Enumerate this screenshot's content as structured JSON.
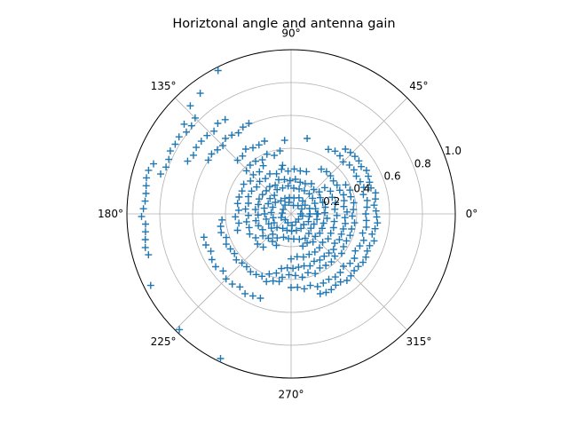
{
  "chart_data": {
    "type": "scatter",
    "projection": "polar",
    "title": "Horiztonal angle and antenna gain",
    "marker": "+",
    "series_color": "#1f77b4",
    "grid": true,
    "theta_unit": "degrees",
    "theta_ticks": [
      "0°",
      "45°",
      "90°",
      "135°",
      "180°",
      "225°",
      "270°",
      "315°"
    ],
    "r_ticks": [
      0.2,
      0.4,
      0.6,
      0.8,
      1.0
    ],
    "r_tick_labels": [
      "0.2",
      "0.4",
      "0.6",
      "0.8",
      "1.0"
    ],
    "r_label_angle_deg": 22.5,
    "rlim": [
      0,
      1.0
    ],
    "series": [
      {
        "description_source": "estimated",
        "arcs": [
          {
            "r": 0.06,
            "theta_start": 0,
            "theta_end": 360,
            "step": 25
          },
          {
            "r": 0.11,
            "theta_start": 0,
            "theta_end": 360,
            "step": 16
          },
          {
            "r": 0.16,
            "theta_start": 0,
            "theta_end": 360,
            "step": 12
          },
          {
            "r": 0.21,
            "theta_start": -70,
            "theta_end": 250,
            "step": 9
          },
          {
            "r": 0.27,
            "theta_start": -90,
            "theta_end": 40,
            "step": 8
          },
          {
            "r": 0.27,
            "theta_start": 70,
            "theta_end": 230,
            "step": 8
          },
          {
            "r": 0.33,
            "theta_start": -100,
            "theta_end": 60,
            "step": 6
          },
          {
            "r": 0.33,
            "theta_start": 120,
            "theta_end": 200,
            "step": 7
          },
          {
            "r": 0.38,
            "theta_start": -110,
            "theta_end": 30,
            "step": 6
          },
          {
            "r": 0.38,
            "theta_start": 100,
            "theta_end": 140,
            "step": 6
          },
          {
            "r": 0.43,
            "theta_start": 185,
            "theta_end": 260,
            "step": 5
          },
          {
            "r": 0.46,
            "theta_start": -90,
            "theta_end": 60,
            "step": 5
          },
          {
            "r": 0.47,
            "theta_start": 110,
            "theta_end": 135,
            "step": 5
          },
          {
            "r": 0.52,
            "theta_start": -70,
            "theta_end": 50,
            "step": 4
          },
          {
            "r": 0.55,
            "theta_start": 195,
            "theta_end": 250,
            "step": 5
          },
          {
            "r": 0.6,
            "theta_start": 115,
            "theta_end": 150,
            "step": 4
          },
          {
            "r": 0.7,
            "theta_start": 125,
            "theta_end": 155,
            "step": 4
          },
          {
            "r": 0.82,
            "theta_start": 135,
            "theta_end": 165,
            "step": 3.5
          },
          {
            "r": 0.9,
            "theta_start": 160,
            "theta_end": 198,
            "step": 3
          }
        ],
        "points": [
          {
            "theta": 117,
            "r": 0.98
          },
          {
            "theta": 127,
            "r": 0.92
          },
          {
            "theta": 133,
            "r": 0.9
          },
          {
            "theta": 140,
            "r": 0.85
          },
          {
            "theta": 207,
            "r": 0.96
          },
          {
            "theta": 226,
            "r": 0.98
          },
          {
            "theta": 244,
            "r": 0.98
          },
          {
            "theta": 95,
            "r": 0.45
          },
          {
            "theta": 78,
            "r": 0.47
          },
          {
            "theta": 100,
            "r": 0.3
          }
        ]
      }
    ]
  }
}
